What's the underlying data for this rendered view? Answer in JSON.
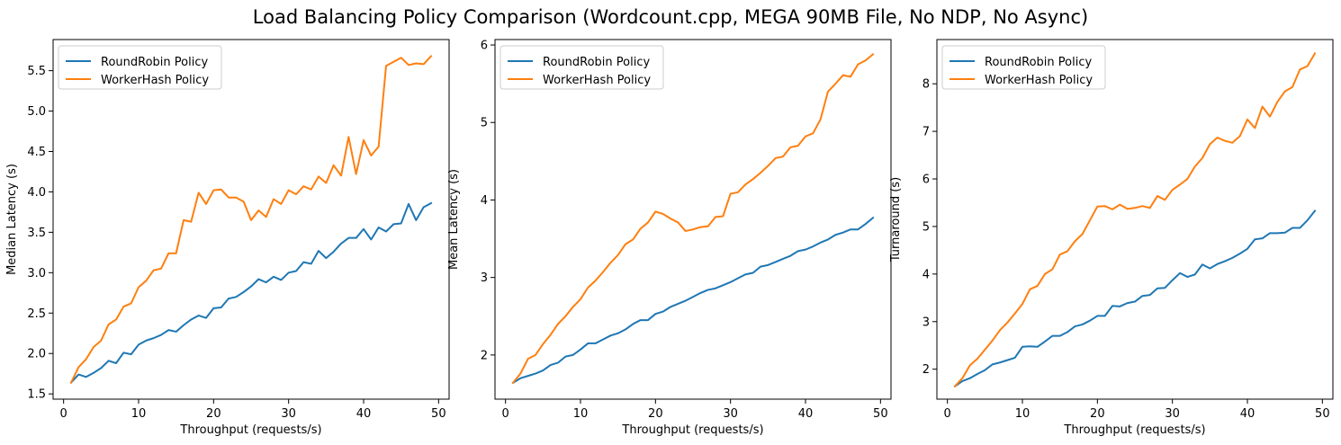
{
  "figure": {
    "suptitle": "Load Balancing Policy Comparison (Wordcount.cpp, MEGA 90MB File, No NDP, No Async)"
  },
  "colors": {
    "roundrobin": "#1f77b4",
    "workerhash": "#ff7f0e"
  },
  "chart_data": [
    {
      "type": "line",
      "title": "",
      "xlabel": "Throughput (requests/s)",
      "ylabel": "Median Latency (s)",
      "xlim": [
        -1.4,
        51.4
      ],
      "ylim": [
        1.435,
        5.885
      ],
      "xticks": [
        0,
        10,
        20,
        30,
        40,
        50
      ],
      "yticks": [
        1.5,
        2.0,
        2.5,
        3.0,
        3.5,
        4.0,
        4.5,
        5.0,
        5.5
      ],
      "ytick_labels": [
        "1.5",
        "2.0",
        "2.5",
        "3.0",
        "3.5",
        "4.0",
        "4.5",
        "5.0",
        "5.5"
      ],
      "legend": "upper-left",
      "grid": false,
      "x": [
        1,
        2,
        3,
        4,
        5,
        6,
        7,
        8,
        9,
        10,
        11,
        12,
        13,
        14,
        15,
        16,
        17,
        18,
        19,
        20,
        21,
        22,
        23,
        24,
        25,
        26,
        27,
        28,
        29,
        30,
        31,
        32,
        33,
        34,
        35,
        36,
        37,
        38,
        39,
        40,
        41,
        42,
        43,
        44,
        45,
        46,
        47,
        48,
        49
      ],
      "series": [
        {
          "name": "RoundRobin Policy",
          "color": "#1f77b4",
          "values": [
            1.64,
            1.74,
            1.71,
            1.76,
            1.82,
            1.91,
            1.88,
            2.01,
            1.99,
            2.11,
            2.16,
            2.19,
            2.23,
            2.29,
            2.27,
            2.35,
            2.42,
            2.47,
            2.44,
            2.56,
            2.57,
            2.68,
            2.7,
            2.76,
            2.83,
            2.92,
            2.88,
            2.95,
            2.91,
            3.0,
            3.02,
            3.13,
            3.11,
            3.27,
            3.18,
            3.26,
            3.36,
            3.43,
            3.43,
            3.54,
            3.41,
            3.56,
            3.51,
            3.6,
            3.61,
            3.85,
            3.65,
            3.81,
            3.86
          ]
        },
        {
          "name": "WorkerHash Policy",
          "color": "#ff7f0e",
          "values": [
            1.64,
            1.83,
            1.93,
            2.08,
            2.16,
            2.36,
            2.42,
            2.58,
            2.62,
            2.82,
            2.9,
            3.03,
            3.05,
            3.24,
            3.24,
            3.65,
            3.63,
            3.99,
            3.85,
            4.02,
            4.03,
            3.93,
            3.93,
            3.88,
            3.65,
            3.77,
            3.69,
            3.91,
            3.85,
            4.02,
            3.97,
            4.07,
            4.03,
            4.19,
            4.11,
            4.33,
            4.2,
            4.68,
            4.22,
            4.64,
            4.45,
            4.56,
            5.56,
            5.61,
            5.66,
            5.57,
            5.59,
            5.58,
            5.68
          ]
        }
      ]
    },
    {
      "type": "line",
      "title": "",
      "xlabel": "Throughput (requests/s)",
      "ylabel": "Mean Latency (s)",
      "xlim": [
        -1.4,
        51.4
      ],
      "ylim": [
        1.43,
        6.07
      ],
      "xticks": [
        0,
        10,
        20,
        30,
        40,
        50
      ],
      "yticks": [
        2,
        3,
        4,
        5,
        6
      ],
      "ytick_labels": [
        "2",
        "3",
        "4",
        "5",
        "6"
      ],
      "legend": "upper-left",
      "grid": false,
      "x": [
        1,
        2,
        3,
        4,
        5,
        6,
        7,
        8,
        9,
        10,
        11,
        12,
        13,
        14,
        15,
        16,
        17,
        18,
        19,
        20,
        21,
        22,
        23,
        24,
        25,
        26,
        27,
        28,
        29,
        30,
        31,
        32,
        33,
        34,
        35,
        36,
        37,
        38,
        39,
        40,
        41,
        42,
        43,
        44,
        45,
        46,
        47,
        48,
        49
      ],
      "series": [
        {
          "name": "RoundRobin Policy",
          "color": "#1f77b4",
          "values": [
            1.64,
            1.7,
            1.73,
            1.76,
            1.8,
            1.87,
            1.9,
            1.98,
            2.0,
            2.07,
            2.15,
            2.15,
            2.2,
            2.25,
            2.28,
            2.33,
            2.4,
            2.45,
            2.45,
            2.53,
            2.56,
            2.62,
            2.66,
            2.7,
            2.75,
            2.8,
            2.84,
            2.86,
            2.9,
            2.94,
            2.99,
            3.04,
            3.06,
            3.14,
            3.16,
            3.2,
            3.24,
            3.28,
            3.34,
            3.36,
            3.4,
            3.45,
            3.49,
            3.55,
            3.58,
            3.62,
            3.62,
            3.69,
            3.77
          ]
        },
        {
          "name": "WorkerHash Policy",
          "color": "#ff7f0e",
          "values": [
            1.64,
            1.76,
            1.95,
            2.0,
            2.14,
            2.26,
            2.4,
            2.5,
            2.62,
            2.72,
            2.87,
            2.96,
            3.07,
            3.19,
            3.29,
            3.43,
            3.49,
            3.63,
            3.71,
            3.85,
            3.82,
            3.76,
            3.71,
            3.6,
            3.62,
            3.65,
            3.66,
            3.78,
            3.79,
            4.08,
            4.1,
            4.2,
            4.27,
            4.35,
            4.44,
            4.54,
            4.56,
            4.68,
            4.7,
            4.82,
            4.86,
            5.04,
            5.4,
            5.5,
            5.61,
            5.59,
            5.75,
            5.8,
            5.88
          ]
        }
      ]
    },
    {
      "type": "line",
      "title": "",
      "xlabel": "Throughput (requests/s)",
      "ylabel": "Turnaround (s)",
      "xlim": [
        -1.4,
        51.4
      ],
      "ylim": [
        1.37,
        8.93
      ],
      "xticks": [
        0,
        10,
        20,
        30,
        40,
        50
      ],
      "yticks": [
        2,
        3,
        4,
        5,
        6,
        7,
        8
      ],
      "ytick_labels": [
        "2",
        "3",
        "4",
        "5",
        "6",
        "7",
        "8"
      ],
      "legend": "upper-left",
      "grid": false,
      "x": [
        1,
        2,
        3,
        4,
        5,
        6,
        7,
        8,
        9,
        10,
        11,
        12,
        13,
        14,
        15,
        16,
        17,
        18,
        19,
        20,
        21,
        22,
        23,
        24,
        25,
        26,
        27,
        28,
        29,
        30,
        31,
        32,
        33,
        34,
        35,
        36,
        37,
        38,
        39,
        40,
        41,
        42,
        43,
        44,
        45,
        46,
        47,
        48,
        49
      ],
      "series": [
        {
          "name": "RoundRobin Policy",
          "color": "#1f77b4",
          "values": [
            1.64,
            1.75,
            1.81,
            1.9,
            1.98,
            2.1,
            2.14,
            2.19,
            2.24,
            2.47,
            2.48,
            2.47,
            2.58,
            2.7,
            2.7,
            2.78,
            2.9,
            2.94,
            3.02,
            3.12,
            3.12,
            3.33,
            3.32,
            3.39,
            3.42,
            3.54,
            3.56,
            3.7,
            3.71,
            3.87,
            4.02,
            3.94,
            3.99,
            4.2,
            4.12,
            4.21,
            4.27,
            4.34,
            4.43,
            4.53,
            4.73,
            4.75,
            4.86,
            4.86,
            4.87,
            4.97,
            4.97,
            5.13,
            5.33
          ]
        },
        {
          "name": "WorkerHash Policy",
          "color": "#ff7f0e",
          "values": [
            1.64,
            1.81,
            2.08,
            2.22,
            2.41,
            2.6,
            2.82,
            2.98,
            3.17,
            3.37,
            3.68,
            3.75,
            4.0,
            4.1,
            4.41,
            4.48,
            4.69,
            4.84,
            5.13,
            5.42,
            5.43,
            5.36,
            5.46,
            5.37,
            5.39,
            5.43,
            5.39,
            5.64,
            5.56,
            5.77,
            5.88,
            6.0,
            6.26,
            6.44,
            6.73,
            6.87,
            6.8,
            6.76,
            6.9,
            7.25,
            7.07,
            7.52,
            7.31,
            7.62,
            7.84,
            7.93,
            8.3,
            8.37,
            8.64
          ]
        }
      ]
    }
  ]
}
